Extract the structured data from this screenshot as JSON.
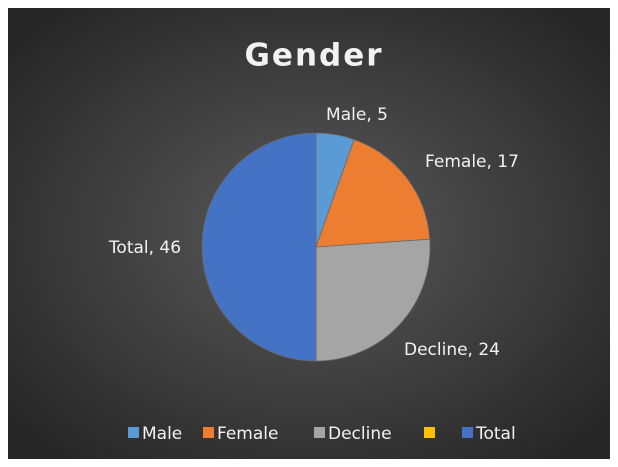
{
  "chart_data": {
    "type": "pie",
    "title": "Gender",
    "categories": [
      "Male",
      "Female",
      "Decline",
      null,
      "Total"
    ],
    "values": [
      5,
      17,
      24,
      0,
      46
    ],
    "value_labels": [
      "Male, 5",
      "Female, 17",
      "Decline, 24",
      null,
      "Total, 46"
    ],
    "colors": [
      "#5b9bd5",
      "#ed7d31",
      "#a5a5a5",
      "#ffc000",
      "#4472c4"
    ],
    "legend": "bottom"
  }
}
